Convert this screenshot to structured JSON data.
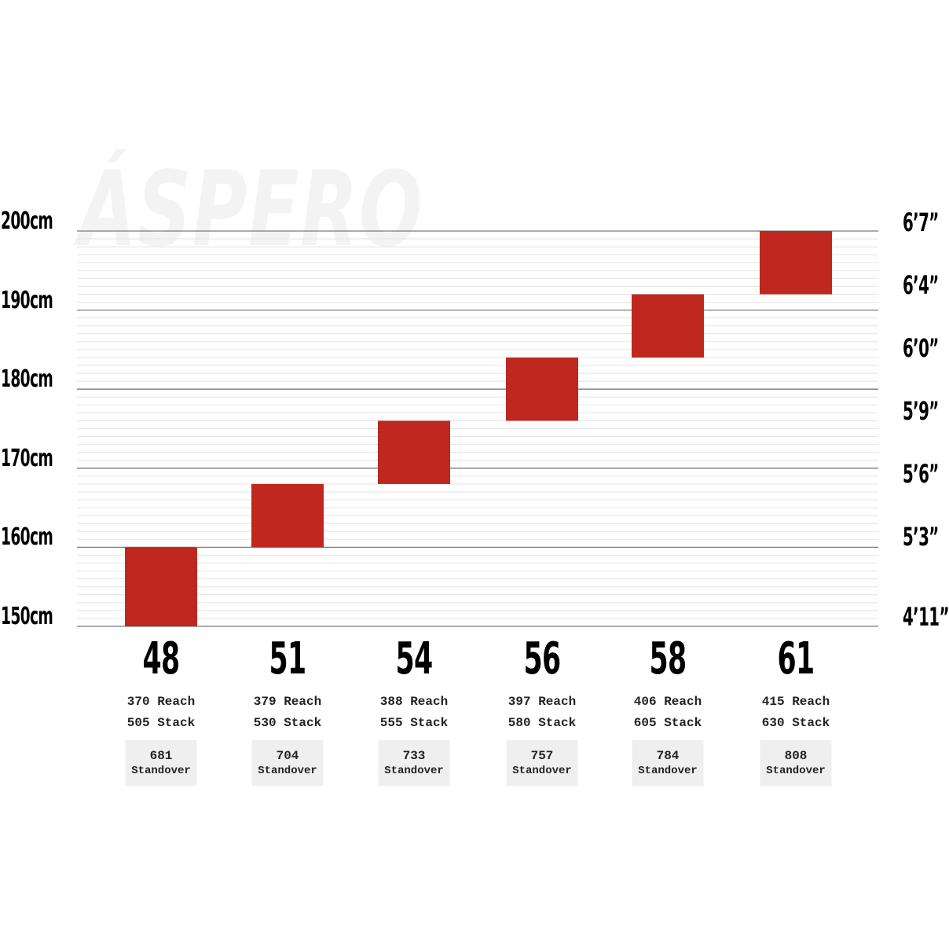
{
  "watermark": "ÁSPERO",
  "colors": {
    "bar": "#be281e",
    "major_grid": "#7a7a7a",
    "minor_grid": "#e4e4e4",
    "standover_box": "#efefef"
  },
  "chart_data": {
    "type": "floating-bar",
    "categories": [
      "48",
      "51",
      "54",
      "56",
      "58",
      "61"
    ],
    "series": [
      {
        "low": [
          150,
          160,
          168,
          176,
          184,
          192
        ],
        "high": [
          160,
          168,
          176,
          184,
          192,
          200
        ]
      }
    ],
    "ylim": [
      150,
      200
    ],
    "yticks_left": [
      "150cm",
      "160cm",
      "170cm",
      "180cm",
      "190cm",
      "200cm"
    ],
    "yticks_right": [
      "4’11”",
      "5’3”",
      "5’6”",
      "5’9”",
      "6’0”",
      "6’4”",
      "6’7”"
    ],
    "grid": true,
    "details": [
      {
        "reach": "370 Reach",
        "stack": "505 Stack",
        "standover": "681",
        "standover_label": "Standover"
      },
      {
        "reach": "379 Reach",
        "stack": "530 Stack",
        "standover": "704",
        "standover_label": "Standover"
      },
      {
        "reach": "388 Reach",
        "stack": "555 Stack",
        "standover": "733",
        "standover_label": "Standover"
      },
      {
        "reach": "397 Reach",
        "stack": "580 Stack",
        "standover": "757",
        "standover_label": "Standover"
      },
      {
        "reach": "406 Reach",
        "stack": "605 Stack",
        "standover": "784",
        "standover_label": "Standover"
      },
      {
        "reach": "415 Reach",
        "stack": "630 Stack",
        "standover": "808",
        "standover_label": "Standover"
      }
    ]
  }
}
